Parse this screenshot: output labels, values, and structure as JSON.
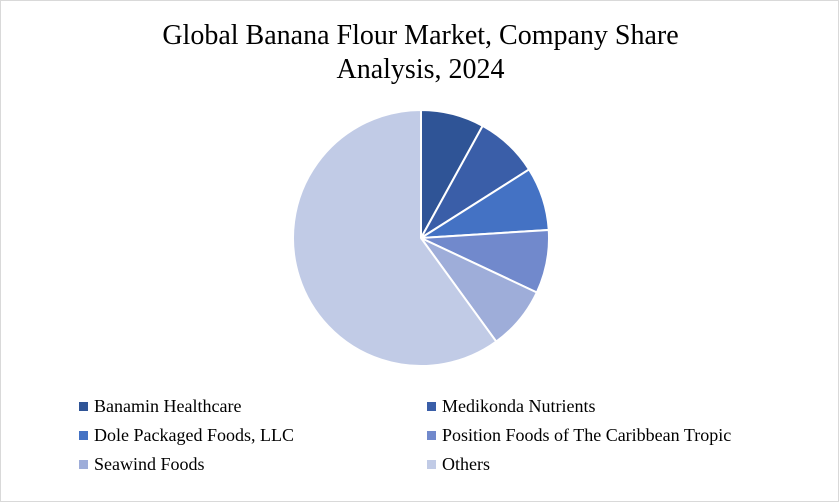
{
  "chart_data": {
    "type": "pie",
    "title_lines": [
      "Global Banana Flour Market, Company Share",
      "Analysis, 2024"
    ],
    "legend_position": "bottom",
    "series": [
      {
        "name": "Banamin Healthcare",
        "value": 8,
        "color": "#2f5496"
      },
      {
        "name": "Medikonda Nutrients",
        "value": 8,
        "color": "#3a5ea8"
      },
      {
        "name": "Dole Packaged Foods, LLC",
        "value": 8,
        "color": "#4472c4"
      },
      {
        "name": "Position Foods of The Caribbean Tropic",
        "value": 8,
        "color": "#7189cc"
      },
      {
        "name": "Seawind Foods",
        "value": 8,
        "color": "#9eadd9"
      },
      {
        "name": "Others",
        "value": 60,
        "color": "#c1cbe6"
      }
    ]
  }
}
